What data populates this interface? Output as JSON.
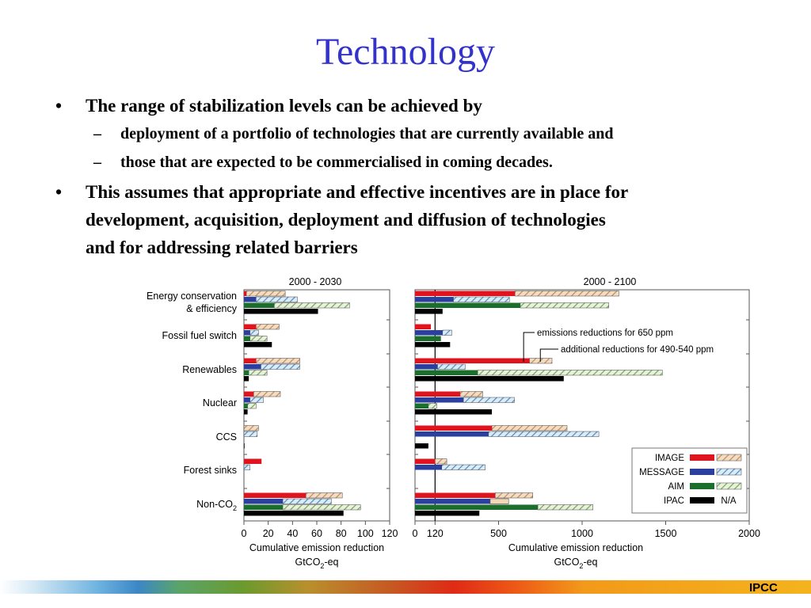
{
  "slide": {
    "title": "Technology",
    "bullets": [
      {
        "text": "The range of stabilization levels can be achieved by",
        "sub": [
          "deployment of a portfolio of technologies that are currently available and",
          "those that are  expected to be commercialised in coming decades."
        ]
      },
      {
        "lines": [
          "This assumes that appropriate and effective incentives are in place for",
          "development, acquisition, deployment and diffusion of technologies",
          "and for addressing related barriers"
        ]
      }
    ],
    "bullet_glyph": "•",
    "sub_glyph": "–",
    "footer": "IPCC"
  },
  "chart_data": {
    "type": "bar",
    "orientation": "horizontal",
    "categories": [
      [
        "Energy conservation",
        "& efficiency"
      ],
      [
        "Fossil fuel switch"
      ],
      [
        "Renewables"
      ],
      [
        "Nuclear"
      ],
      [
        "CCS"
      ],
      [
        "Forest sinks"
      ],
      [
        "Non-CO2"
      ]
    ],
    "models": [
      {
        "name": "IMAGE",
        "color": "#e0141e",
        "hatch": "#e3b58a"
      },
      {
        "name": "MESSAGE",
        "color": "#2b3f9e",
        "hatch": "#8fc3ea"
      },
      {
        "name": "AIM",
        "color": "#1b6e2c",
        "hatch": "#b9d9a0"
      },
      {
        "name": "IPAC",
        "color": "#000000",
        "hatch": null,
        "hatch_label": "N/A"
      }
    ],
    "legend_position": "lower-right",
    "annotations": [
      "emissions reductions for 650 ppm",
      "additional reductions for 490-540 ppm"
    ],
    "xlabel": "Cumulative emission reduction",
    "unit": "GtCO2-eq",
    "panels": [
      {
        "title": "2000 - 2030",
        "xlim": [
          0,
          120
        ],
        "xticks": [
          "0",
          "20",
          "40",
          "60",
          "80",
          "100",
          "120"
        ],
        "tick_values": [
          0,
          20,
          40,
          60,
          80,
          100,
          120
        ],
        "series": [
          {
            "name": "IMAGE",
            "solid": [
              2,
              10,
              10,
              8,
              0,
              14.5,
              51
            ],
            "total": [
              34,
              29,
              46,
              30,
              12,
              14.5,
              81
            ]
          },
          {
            "name": "MESSAGE",
            "solid": [
              10,
              5,
              14,
              5,
              0,
              0,
              32
            ],
            "total": [
              44,
              12,
              46,
              16,
              11,
              5,
              72
            ]
          },
          {
            "name": "AIM",
            "solid": [
              25,
              5,
              4,
              3,
              0,
              0,
              32
            ],
            "total": [
              87,
              19,
              19,
              10,
              0,
              0,
              96
            ]
          },
          {
            "name": "IPAC",
            "solid": [
              61,
              23,
              4,
              3,
              0.5,
              0,
              82
            ],
            "total": [
              61,
              23,
              4,
              3,
              0.5,
              0,
              82
            ]
          }
        ]
      },
      {
        "title": "2000 - 2100",
        "xlim": [
          0,
          2000
        ],
        "xticks": [
          "0",
          "120",
          "500",
          "1000",
          "1500",
          "2000"
        ],
        "tick_values": [
          0,
          120,
          500,
          1000,
          1500,
          2000
        ],
        "series": [
          {
            "name": "IMAGE",
            "solid": [
              598,
              95,
              685,
              270,
              460,
              120,
              480
            ],
            "total": [
              1220,
              95,
              820,
              405,
              910,
              190,
              705
            ]
          },
          {
            "name": "MESSAGE",
            "solid": [
              230,
              165,
              135,
              290,
              440,
              160,
              450
            ],
            "total": [
              565,
              220,
              300,
              595,
              1100,
              420,
              560
            ]
          },
          {
            "name": "AIM",
            "solid": [
              630,
              155,
              375,
              80,
              0,
              0,
              735
            ],
            "total": [
              1160,
              155,
              1480,
              130,
              0,
              0,
              1065
            ]
          },
          {
            "name": "IPAC",
            "solid": [
              165,
              210,
              890,
              460,
              80,
              0,
              385
            ],
            "total": [
              165,
              210,
              890,
              460,
              80,
              0,
              385
            ]
          }
        ]
      }
    ]
  }
}
